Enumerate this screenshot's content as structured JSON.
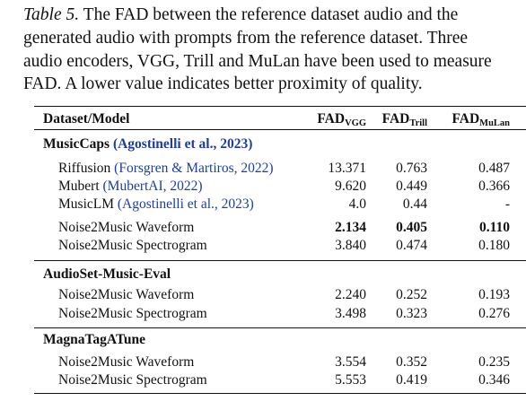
{
  "caption": {
    "label": "Table 5.",
    "lines": [
      " The FAD between the reference dataset audio and the",
      "generated audio with prompts from the reference dataset. Three",
      "audio encoders, VGG, Trill and MuLan have been used to measure",
      "FAD. A lower value indicates better proximity of quality."
    ]
  },
  "table": {
    "headers": {
      "model": "Dataset/Model",
      "fad_prefix": "FAD",
      "vgg": "VGG",
      "trill": "Trill",
      "mulan": "MuLan"
    },
    "musiccaps": {
      "title": "MusicCaps",
      "cite": "(Agostinelli et al., 2023)",
      "riffusion": {
        "name": "Riffusion",
        "cite": "(Forsgren & Martiros, 2022)",
        "vgg": "13.371",
        "trill": "0.763",
        "mulan": "0.487"
      },
      "mubert": {
        "name": "Mubert",
        "cite": "(MubertAI, 2022)",
        "vgg": "9.620",
        "trill": "0.449",
        "mulan": "0.366"
      },
      "musiclm": {
        "name": "MusicLM",
        "cite": "(Agostinelli et al., 2023)",
        "vgg": "4.0",
        "trill": "0.44",
        "mulan": "-"
      },
      "waveform": {
        "name": "Noise2Music Waveform",
        "vgg": "2.134",
        "trill": "0.405",
        "mulan": "0.110"
      },
      "spectrogram": {
        "name": "Noise2Music Spectrogram",
        "vgg": "3.840",
        "trill": "0.474",
        "mulan": "0.180"
      }
    },
    "audioset": {
      "title": "AudioSet-Music-Eval",
      "waveform": {
        "name": "Noise2Music Waveform",
        "vgg": "2.240",
        "trill": "0.252",
        "mulan": "0.193"
      },
      "spectrogram": {
        "name": "Noise2Music Spectrogram",
        "vgg": "3.498",
        "trill": "0.323",
        "mulan": "0.276"
      }
    },
    "magnatagatune": {
      "title": "MagnaTagATune",
      "waveform": {
        "name": "Noise2Music Waveform",
        "vgg": "3.554",
        "trill": "0.352",
        "mulan": "0.235"
      },
      "spectrogram": {
        "name": "Noise2Music Spectrogram",
        "vgg": "5.553",
        "trill": "0.419",
        "mulan": "0.346"
      }
    }
  }
}
